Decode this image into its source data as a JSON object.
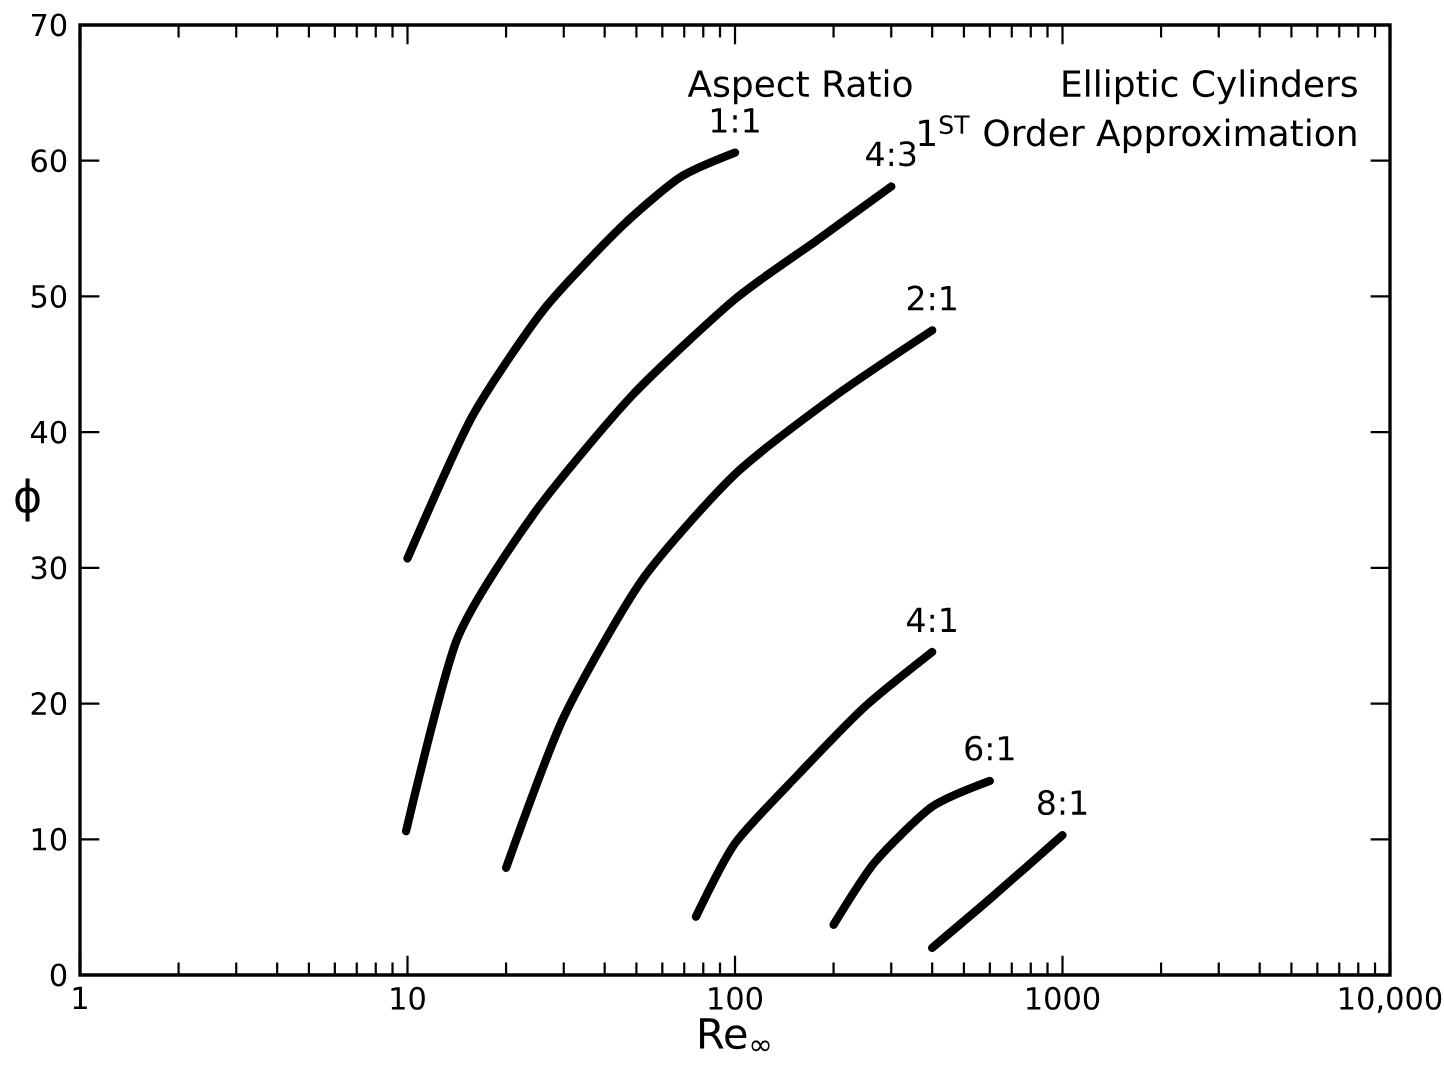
{
  "chart_data": {
    "type": "line",
    "xlabel": "Re$_{∞}$",
    "ylabel": "ϕ",
    "log": "x",
    "xlim": [
      1,
      10000
    ],
    "ylim": [
      0,
      70
    ],
    "xticks": [
      1,
      10,
      100,
      1000,
      {
        "value": 10000,
        "label": "10,000"
      }
    ],
    "yticks": [
      0,
      10,
      20,
      30,
      40,
      50,
      60,
      70
    ],
    "line_style": "solid",
    "annotations": [
      "Aspect Ratio",
      "Elliptic Cylinders",
      "1$^{ST}$ Order Approximation"
    ],
    "series": [
      {
        "name": "1:1",
        "color": "#000000",
        "x": [
          10,
          15.8,
          26.2,
          45.3,
          68.2,
          100
        ],
        "values": [
          30.7,
          41.2,
          49.1,
          55.2,
          58.8,
          60.6
        ]
      },
      {
        "name": "4:3",
        "color": "#000000",
        "x": [
          9.9,
          14.2,
          24.5,
          48.5,
          100,
          177,
          300
        ],
        "values": [
          10.6,
          24.8,
          34.1,
          42.7,
          49.8,
          54.1,
          58.1
        ]
      },
      {
        "name": "2:1",
        "color": "#000000",
        "x": [
          20,
          30,
          52,
          100,
          203,
          400
        ],
        "values": [
          7.9,
          19.0,
          29.1,
          36.9,
          42.7,
          47.5
        ]
      },
      {
        "name": "4:1",
        "color": "#000000",
        "x": [
          76,
          100,
          155,
          250,
          400
        ],
        "values": [
          4.3,
          9.7,
          14.7,
          19.8,
          23.8
        ]
      },
      {
        "name": "6:1",
        "color": "#000000",
        "x": [
          200,
          267,
          400,
          600
        ],
        "values": [
          3.7,
          8.3,
          12.4,
          14.3
        ]
      },
      {
        "name": "8:1",
        "color": "#000000",
        "x": [
          400,
          600,
          1000
        ],
        "values": [
          2.0,
          5.6,
          10.3
        ]
      }
    ]
  }
}
